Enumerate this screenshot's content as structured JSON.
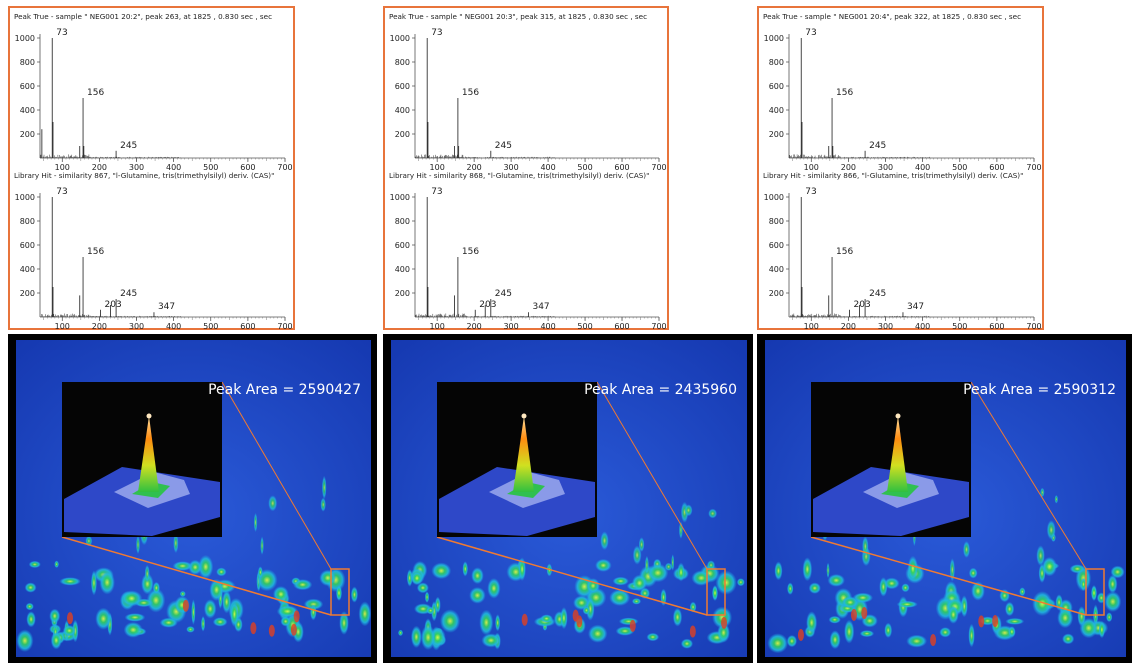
{
  "colors": {
    "frame": "#e8743b",
    "spectrum_line": "#333333",
    "heatmap_bg": "#1a44c8",
    "zoom_line": "#f07a32"
  },
  "panels": [
    {
      "top_title": "Peak True - sample \" NEG001 20:2\", peak 263, at 1825 , 0.830 sec , sec",
      "bottom_title": "Library Hit - similarity 867, \"l-Glutamine, tris(trimethylsilyl) deriv. (CAS)\"",
      "peak_area_label": "Peak Area = 2590427"
    },
    {
      "top_title": "Peak True - sample \" NEG001 20:3\", peak 315, at 1825 , 0.830 sec , sec",
      "bottom_title": "Library Hit - similarity 868, \"l-Glutamine, tris(trimethylsilyl) deriv. (CAS)\"",
      "peak_area_label": "Peak Area = 2435960"
    },
    {
      "top_title": "Peak True - sample \" NEG001 20:4\", peak 322, at 1825 , 0.830 sec , sec",
      "bottom_title": "Library Hit - similarity 866, \"l-Glutamine, tris(trimethylsilyl) deriv. (CAS)\"",
      "peak_area_label": "Peak Area = 2590312"
    }
  ],
  "chart_data": [
    {
      "type": "bar",
      "title": "Peak True - sample \" NEG001 20:2\", peak 263, at 1825 , 0.830 sec , sec",
      "xlim": [
        40,
        700
      ],
      "ylim": [
        0,
        1000
      ],
      "xticks": [
        100,
        200,
        300,
        400,
        500,
        600,
        700
      ],
      "yticks": [
        200,
        400,
        600,
        800,
        1000
      ],
      "peaks": [
        {
          "x": 45,
          "y": 240
        },
        {
          "x": 73,
          "y": 1000
        },
        {
          "x": 75,
          "y": 300
        },
        {
          "x": 147,
          "y": 100
        },
        {
          "x": 156,
          "y": 500
        },
        {
          "x": 158,
          "y": 100
        },
        {
          "x": 245,
          "y": 60
        }
      ],
      "peak_labels": [
        {
          "x": 73,
          "y": 1000,
          "text": "73"
        },
        {
          "x": 156,
          "y": 500,
          "text": "156"
        },
        {
          "x": 245,
          "y": 60,
          "text": "245"
        }
      ]
    },
    {
      "type": "bar",
      "title": "Library Hit - similarity 867, \"l-Glutamine, tris(trimethylsilyl) deriv. (CAS)\"",
      "xlim": [
        40,
        700
      ],
      "ylim": [
        0,
        1000
      ],
      "xticks": [
        100,
        200,
        300,
        400,
        500,
        600,
        700
      ],
      "yticks": [
        200,
        400,
        600,
        800,
        1000
      ],
      "peaks": [
        {
          "x": 73,
          "y": 1000
        },
        {
          "x": 75,
          "y": 250
        },
        {
          "x": 147,
          "y": 180
        },
        {
          "x": 156,
          "y": 500
        },
        {
          "x": 203,
          "y": 60
        },
        {
          "x": 230,
          "y": 100
        },
        {
          "x": 245,
          "y": 150
        },
        {
          "x": 347,
          "y": 40
        }
      ],
      "peak_labels": [
        {
          "x": 73,
          "y": 1000,
          "text": "73"
        },
        {
          "x": 156,
          "y": 500,
          "text": "156"
        },
        {
          "x": 203,
          "y": 60,
          "text": "203"
        },
        {
          "x": 245,
          "y": 150,
          "text": "245"
        },
        {
          "x": 347,
          "y": 40,
          "text": "347"
        }
      ]
    },
    {
      "type": "bar",
      "title": "Peak True - sample \" NEG001 20:3\", peak 315, at 1825 , 0.830 sec , sec",
      "xlim": [
        40,
        700
      ],
      "ylim": [
        0,
        1000
      ],
      "xticks": [
        100,
        200,
        300,
        400,
        500,
        600,
        700
      ],
      "yticks": [
        200,
        400,
        600,
        800,
        1000
      ],
      "peaks": [
        {
          "x": 73,
          "y": 1000
        },
        {
          "x": 75,
          "y": 300
        },
        {
          "x": 147,
          "y": 100
        },
        {
          "x": 156,
          "y": 500
        },
        {
          "x": 158,
          "y": 100
        },
        {
          "x": 245,
          "y": 60
        }
      ],
      "peak_labels": [
        {
          "x": 73,
          "y": 1000,
          "text": "73"
        },
        {
          "x": 156,
          "y": 500,
          "text": "156"
        },
        {
          "x": 245,
          "y": 60,
          "text": "245"
        }
      ]
    },
    {
      "type": "bar",
      "title": "Library Hit - similarity 868, \"l-Glutamine, tris(trimethylsilyl) deriv. (CAS)\"",
      "xlim": [
        40,
        700
      ],
      "ylim": [
        0,
        1000
      ],
      "xticks": [
        100,
        200,
        300,
        400,
        500,
        600,
        700
      ],
      "yticks": [
        200,
        400,
        600,
        800,
        1000
      ],
      "peaks": [
        {
          "x": 73,
          "y": 1000
        },
        {
          "x": 75,
          "y": 250
        },
        {
          "x": 147,
          "y": 180
        },
        {
          "x": 156,
          "y": 500
        },
        {
          "x": 203,
          "y": 60
        },
        {
          "x": 230,
          "y": 100
        },
        {
          "x": 245,
          "y": 150
        },
        {
          "x": 347,
          "y": 40
        }
      ],
      "peak_labels": [
        {
          "x": 73,
          "y": 1000,
          "text": "73"
        },
        {
          "x": 156,
          "y": 500,
          "text": "156"
        },
        {
          "x": 203,
          "y": 60,
          "text": "203"
        },
        {
          "x": 245,
          "y": 150,
          "text": "245"
        },
        {
          "x": 347,
          "y": 40,
          "text": "347"
        }
      ]
    },
    {
      "type": "bar",
      "title": "Peak True - sample \" NEG001 20:4\", peak 322, at 1825 , 0.830 sec , sec",
      "xlim": [
        40,
        700
      ],
      "ylim": [
        0,
        1000
      ],
      "xticks": [
        100,
        200,
        300,
        400,
        500,
        600,
        700
      ],
      "yticks": [
        200,
        400,
        600,
        800,
        1000
      ],
      "peaks": [
        {
          "x": 73,
          "y": 1000
        },
        {
          "x": 75,
          "y": 300
        },
        {
          "x": 147,
          "y": 100
        },
        {
          "x": 156,
          "y": 500
        },
        {
          "x": 158,
          "y": 100
        },
        {
          "x": 245,
          "y": 60
        }
      ],
      "peak_labels": [
        {
          "x": 73,
          "y": 1000,
          "text": "73"
        },
        {
          "x": 156,
          "y": 500,
          "text": "156"
        },
        {
          "x": 245,
          "y": 60,
          "text": "245"
        }
      ]
    },
    {
      "type": "bar",
      "title": "Library Hit - similarity 866, \"l-Glutamine, tris(trimethylsilyl) deriv. (CAS)\"",
      "xlim": [
        40,
        700
      ],
      "ylim": [
        0,
        1000
      ],
      "xticks": [
        100,
        200,
        300,
        400,
        500,
        600,
        700
      ],
      "yticks": [
        200,
        400,
        600,
        800,
        1000
      ],
      "peaks": [
        {
          "x": 73,
          "y": 1000
        },
        {
          "x": 75,
          "y": 250
        },
        {
          "x": 147,
          "y": 180
        },
        {
          "x": 156,
          "y": 500
        },
        {
          "x": 203,
          "y": 60
        },
        {
          "x": 230,
          "y": 100
        },
        {
          "x": 245,
          "y": 150
        },
        {
          "x": 347,
          "y": 40
        }
      ],
      "peak_labels": [
        {
          "x": 73,
          "y": 1000,
          "text": "73"
        },
        {
          "x": 156,
          "y": 500,
          "text": "156"
        },
        {
          "x": 203,
          "y": 60,
          "text": "203"
        },
        {
          "x": 245,
          "y": 150,
          "text": "245"
        },
        {
          "x": 347,
          "y": 40,
          "text": "347"
        }
      ]
    }
  ]
}
